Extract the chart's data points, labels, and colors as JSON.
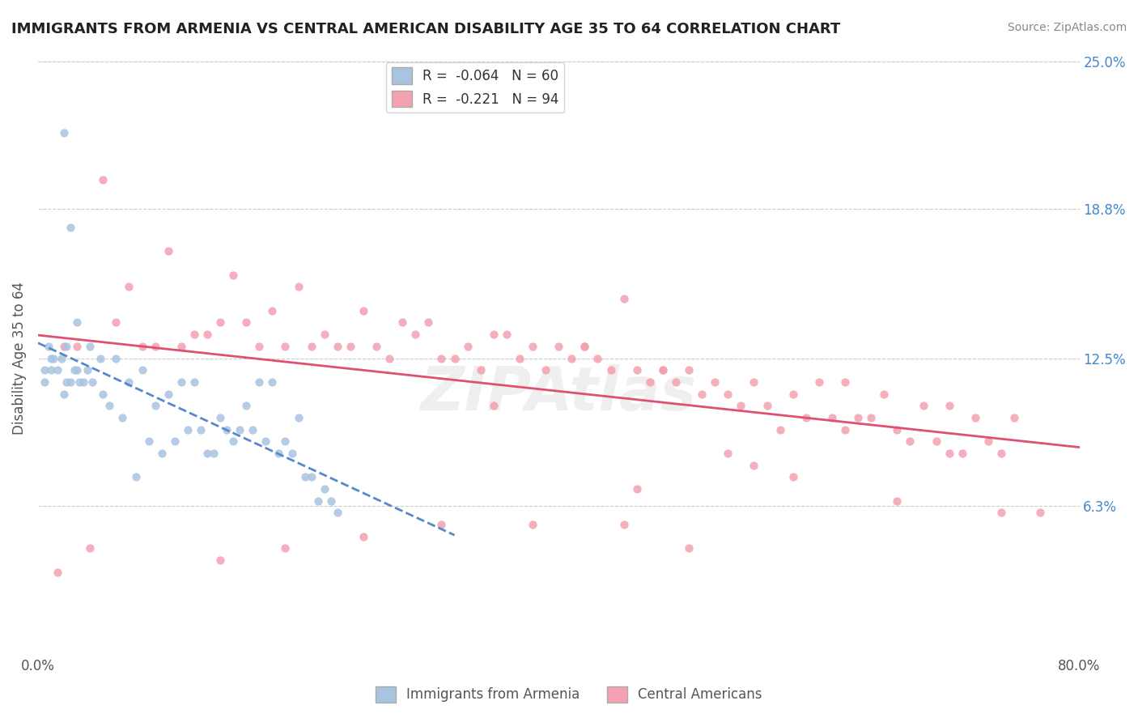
{
  "title": "IMMIGRANTS FROM ARMENIA VS CENTRAL AMERICAN DISABILITY AGE 35 TO 64 CORRELATION CHART",
  "source": "Source: ZipAtlas.com",
  "ylabel": "Disability Age 35 to 64",
  "x_min": 0.0,
  "x_max": 0.8,
  "y_min": 0.0,
  "y_max": 0.25,
  "y_ticks": [
    0.063,
    0.125,
    0.188,
    0.25
  ],
  "y_tick_labels": [
    "6.3%",
    "12.5%",
    "18.8%",
    "25.0%"
  ],
  "x_ticks": [
    0.0,
    0.8
  ],
  "x_tick_labels": [
    "0.0%",
    "80.0%"
  ],
  "armenia_R": -0.064,
  "armenia_N": 60,
  "central_R": -0.221,
  "central_N": 94,
  "armenia_color": "#a8c4e0",
  "armenia_line_color": "#5588cc",
  "central_color": "#f4a0b0",
  "central_line_color": "#e05070",
  "armenia_scatter_x": [
    0.005,
    0.005,
    0.008,
    0.01,
    0.01,
    0.012,
    0.015,
    0.018,
    0.02,
    0.02,
    0.022,
    0.022,
    0.025,
    0.025,
    0.028,
    0.03,
    0.03,
    0.032,
    0.035,
    0.038,
    0.04,
    0.042,
    0.048,
    0.05,
    0.055,
    0.06,
    0.065,
    0.07,
    0.075,
    0.08,
    0.085,
    0.09,
    0.095,
    0.1,
    0.105,
    0.11,
    0.115,
    0.12,
    0.125,
    0.13,
    0.135,
    0.14,
    0.145,
    0.15,
    0.155,
    0.16,
    0.165,
    0.17,
    0.175,
    0.18,
    0.185,
    0.19,
    0.195,
    0.2,
    0.205,
    0.21,
    0.215,
    0.22,
    0.225,
    0.23
  ],
  "armenia_scatter_y": [
    0.115,
    0.12,
    0.13,
    0.12,
    0.125,
    0.125,
    0.12,
    0.125,
    0.22,
    0.11,
    0.115,
    0.13,
    0.18,
    0.115,
    0.12,
    0.14,
    0.12,
    0.115,
    0.115,
    0.12,
    0.13,
    0.115,
    0.125,
    0.11,
    0.105,
    0.125,
    0.1,
    0.115,
    0.075,
    0.12,
    0.09,
    0.105,
    0.085,
    0.11,
    0.09,
    0.115,
    0.095,
    0.115,
    0.095,
    0.085,
    0.085,
    0.1,
    0.095,
    0.09,
    0.095,
    0.105,
    0.095,
    0.115,
    0.09,
    0.115,
    0.085,
    0.09,
    0.085,
    0.1,
    0.075,
    0.075,
    0.065,
    0.07,
    0.065,
    0.06
  ],
  "central_scatter_x": [
    0.02,
    0.03,
    0.05,
    0.06,
    0.07,
    0.08,
    0.09,
    0.1,
    0.11,
    0.12,
    0.13,
    0.14,
    0.15,
    0.16,
    0.17,
    0.18,
    0.19,
    0.2,
    0.21,
    0.22,
    0.23,
    0.24,
    0.25,
    0.26,
    0.27,
    0.28,
    0.29,
    0.3,
    0.31,
    0.32,
    0.33,
    0.34,
    0.35,
    0.36,
    0.37,
    0.38,
    0.39,
    0.4,
    0.41,
    0.42,
    0.43,
    0.44,
    0.45,
    0.46,
    0.47,
    0.48,
    0.49,
    0.5,
    0.51,
    0.52,
    0.53,
    0.54,
    0.55,
    0.56,
    0.57,
    0.58,
    0.59,
    0.6,
    0.61,
    0.62,
    0.63,
    0.64,
    0.65,
    0.66,
    0.67,
    0.68,
    0.69,
    0.7,
    0.71,
    0.72,
    0.73,
    0.74,
    0.75,
    0.35,
    0.42,
    0.48,
    0.53,
    0.45,
    0.38,
    0.31,
    0.25,
    0.19,
    0.14,
    0.46,
    0.5,
    0.55,
    0.58,
    0.62,
    0.66,
    0.7,
    0.74,
    0.77,
    0.04,
    0.015
  ],
  "central_scatter_y": [
    0.13,
    0.13,
    0.2,
    0.14,
    0.155,
    0.13,
    0.13,
    0.17,
    0.13,
    0.135,
    0.135,
    0.14,
    0.16,
    0.14,
    0.13,
    0.145,
    0.13,
    0.155,
    0.13,
    0.135,
    0.13,
    0.13,
    0.145,
    0.13,
    0.125,
    0.14,
    0.135,
    0.14,
    0.125,
    0.125,
    0.13,
    0.12,
    0.135,
    0.135,
    0.125,
    0.13,
    0.12,
    0.13,
    0.125,
    0.13,
    0.125,
    0.12,
    0.15,
    0.12,
    0.115,
    0.12,
    0.115,
    0.12,
    0.11,
    0.115,
    0.11,
    0.105,
    0.115,
    0.105,
    0.095,
    0.11,
    0.1,
    0.115,
    0.1,
    0.115,
    0.1,
    0.1,
    0.11,
    0.095,
    0.09,
    0.105,
    0.09,
    0.105,
    0.085,
    0.1,
    0.09,
    0.085,
    0.1,
    0.105,
    0.13,
    0.12,
    0.085,
    0.055,
    0.055,
    0.055,
    0.05,
    0.045,
    0.04,
    0.07,
    0.045,
    0.08,
    0.075,
    0.095,
    0.065,
    0.085,
    0.06,
    0.06,
    0.045,
    0.035
  ]
}
